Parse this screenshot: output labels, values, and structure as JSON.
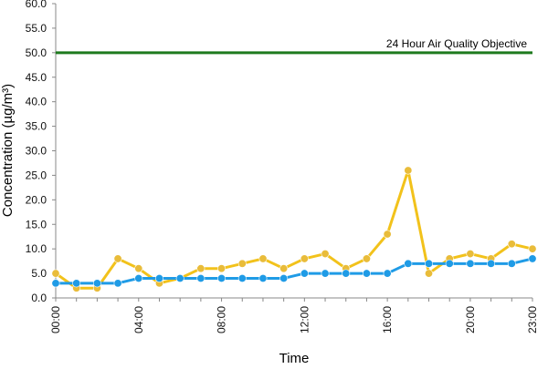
{
  "chart_data": {
    "type": "line",
    "title": "",
    "xlabel": "Time",
    "ylabel": "Concentration (µg/m³)",
    "ylim": [
      0,
      60
    ],
    "yticks": [
      "0.0",
      "5.0",
      "10.0",
      "15.0",
      "20.0",
      "25.0",
      "30.0",
      "35.0",
      "40.0",
      "45.0",
      "50.0",
      "55.0",
      "60.0"
    ],
    "xlim": [
      0,
      23
    ],
    "xticks": [
      {
        "hour": 0,
        "label": "00:00"
      },
      {
        "hour": 4,
        "label": "04:00"
      },
      {
        "hour": 8,
        "label": "08:00"
      },
      {
        "hour": 12,
        "label": "12:00"
      },
      {
        "hour": 16,
        "label": "16:00"
      },
      {
        "hour": 20,
        "label": "20:00"
      },
      {
        "hour": 23,
        "label": "23:00"
      }
    ],
    "grid": false,
    "hours": [
      0,
      1,
      2,
      3,
      4,
      5,
      6,
      7,
      8,
      9,
      10,
      11,
      12,
      13,
      14,
      15,
      16,
      17,
      18,
      19,
      20,
      21,
      22,
      23
    ],
    "series": [
      {
        "color": "#f2c21b",
        "marker_color": "#e9bc3a",
        "values": [
          5,
          2,
          2,
          8,
          6,
          3,
          4,
          6,
          6,
          7,
          8,
          6,
          8,
          9,
          6,
          8,
          13,
          26,
          5,
          8,
          9,
          8,
          11,
          10
        ]
      },
      {
        "color": "#1f9be6",
        "marker_color": "#1f9be6",
        "values": [
          3,
          3,
          3,
          3,
          4,
          4,
          4,
          4,
          4,
          4,
          4,
          4,
          5,
          5,
          5,
          5,
          5,
          7,
          7,
          7,
          7,
          7,
          7,
          8
        ]
      }
    ],
    "reference_line": {
      "value": 50,
      "label": "24 Hour Air Quality Objective",
      "color": "#1e7a1e"
    },
    "axis_color": "#888888"
  }
}
